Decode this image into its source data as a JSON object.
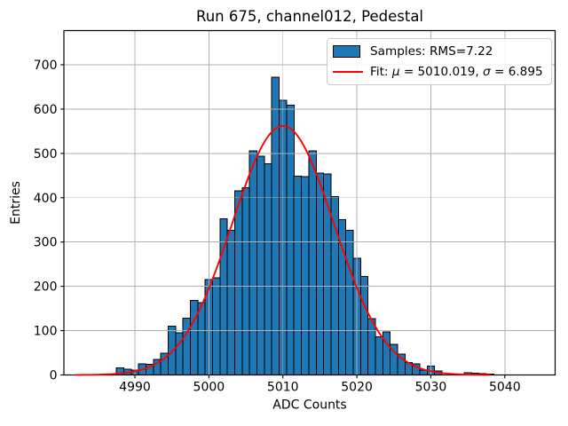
{
  "chart_data": {
    "type": "bar",
    "title": "Run 675, channel012, Pedestal",
    "xlabel": "ADC Counts",
    "ylabel": "Entries",
    "xlim": [
      4980.4,
      5046.8
    ],
    "ylim": [
      0,
      777
    ],
    "x_ticks": [
      4990,
      5000,
      5010,
      5020,
      5030,
      5040
    ],
    "y_ticks": [
      0,
      100,
      200,
      300,
      400,
      500,
      600,
      700
    ],
    "grid": true,
    "grid_color": "#b0b0b0",
    "bar_color": "#1f77b4",
    "bar_edge_color": "#000000",
    "histogram": {
      "bin_start": 4984.5,
      "bin_width": 1,
      "counts": [
        0,
        0,
        0,
        16,
        13,
        11,
        25,
        24,
        35,
        49,
        110,
        95,
        128,
        168,
        163,
        215,
        219,
        352,
        326,
        416,
        423,
        506,
        494,
        477,
        672,
        620,
        609,
        449,
        448,
        506,
        456,
        454,
        403,
        350,
        326,
        263,
        222,
        127,
        86,
        97,
        69,
        47,
        28,
        25,
        11,
        20,
        9,
        0,
        0,
        0,
        5,
        4,
        3,
        2
      ]
    },
    "fit": {
      "color": "#ff0000",
      "mu": 5010.019,
      "sigma": 6.895,
      "amplitude": 562,
      "x_start": 4982.0,
      "x_end": 5038.3
    },
    "legend": {
      "position": "top-right",
      "entries": [
        {
          "swatch": "patch",
          "parts": [
            {
              "text": "Samples: RMS=7.22",
              "italic": false
            }
          ]
        },
        {
          "swatch": "line",
          "parts": [
            {
              "text": "Fit: ",
              "italic": false
            },
            {
              "text": "μ",
              "italic": true
            },
            {
              "text": " = 5010.019, ",
              "italic": false
            },
            {
              "text": "σ",
              "italic": true
            },
            {
              "text": " = 6.895",
              "italic": false
            }
          ]
        }
      ]
    }
  }
}
